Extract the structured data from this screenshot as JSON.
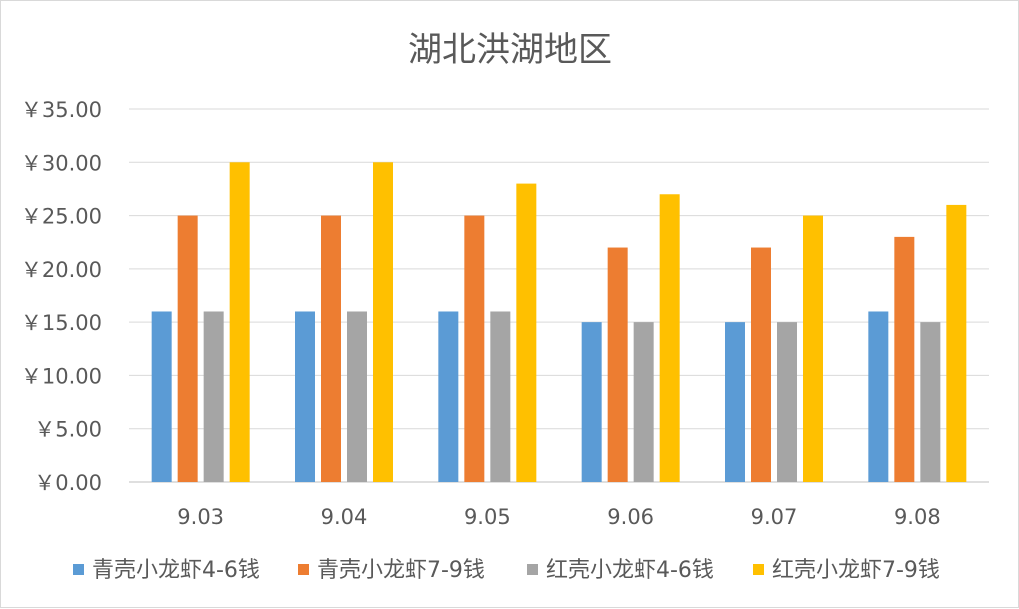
{
  "chart_data": {
    "type": "bar",
    "title": "湖北洪湖地区",
    "xlabel": "",
    "ylabel": "",
    "categories": [
      "9.03",
      "9.04",
      "9.05",
      "9.06",
      "9.07",
      "9.08"
    ],
    "y_tick_labels": [
      "￥0.00",
      "￥5.00",
      "￥10.00",
      "￥15.00",
      "￥20.00",
      "￥25.00",
      "￥30.00",
      "￥35.00"
    ],
    "ylim": [
      0,
      35
    ],
    "y_step": 5,
    "grid": true,
    "legend_position": "bottom",
    "series": [
      {
        "name": "青壳小龙虾4-6钱",
        "color": "#5B9BD5",
        "values": [
          16,
          16,
          16,
          15,
          15,
          16
        ]
      },
      {
        "name": "青壳小龙虾7-9钱",
        "color": "#ED7D31",
        "values": [
          25,
          25,
          25,
          22,
          22,
          23
        ]
      },
      {
        "name": "红壳小龙虾4-6钱",
        "color": "#A5A5A5",
        "values": [
          16,
          16,
          16,
          15,
          15,
          15
        ]
      },
      {
        "name": "红壳小龙虾7-9钱",
        "color": "#FFC000",
        "values": [
          30,
          30,
          28,
          27,
          25,
          26
        ]
      }
    ]
  }
}
